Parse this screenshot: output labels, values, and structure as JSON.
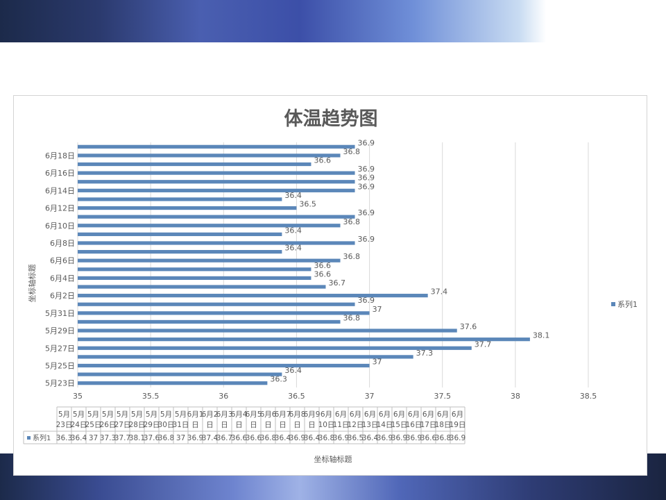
{
  "chart_data": {
    "type": "bar",
    "orientation": "horizontal",
    "title": "体温趋势图",
    "xlabel": "坐标轴标题",
    "ylabel": "坐标轴标题",
    "categories": [
      "5月23日",
      "5月24日",
      "5月25日",
      "5月26日",
      "5月27日",
      "5月28日",
      "5月29日",
      "5月30日",
      "5月31日",
      "6月1日",
      "6月2日",
      "6月3日",
      "6月4日",
      "6月5日",
      "6月6日",
      "6月7日",
      "6月8日",
      "6月9日",
      "6月10日",
      "6月11日",
      "6月12日",
      "6月13日",
      "6月14日",
      "6月15日",
      "6月16日",
      "6月17日",
      "6月18日",
      "6月19日"
    ],
    "table_headers": [
      [
        "5月",
        "23日"
      ],
      [
        "5月",
        "24日"
      ],
      [
        "5月",
        "25日"
      ],
      [
        "5月",
        "26日"
      ],
      [
        "5月",
        "27日"
      ],
      [
        "5月",
        "28日"
      ],
      [
        "5月",
        "29日"
      ],
      [
        "5月",
        "30日"
      ],
      [
        "5月",
        "31日"
      ],
      [
        "6月1",
        "日"
      ],
      [
        "6月2",
        "日"
      ],
      [
        "6月3",
        "日"
      ],
      [
        "6月4",
        "日"
      ],
      [
        "6月5",
        "日"
      ],
      [
        "6月6",
        "日"
      ],
      [
        "6月7",
        "日"
      ],
      [
        "6月8",
        "日"
      ],
      [
        "6月9",
        "日"
      ],
      [
        "6月",
        "10日"
      ],
      [
        "6月",
        "11日"
      ],
      [
        "6月",
        "12日"
      ],
      [
        "6月",
        "13日"
      ],
      [
        "6月",
        "14日"
      ],
      [
        "6月",
        "15日"
      ],
      [
        "6月",
        "16日"
      ],
      [
        "6月",
        "17日"
      ],
      [
        "6月",
        "18日"
      ],
      [
        "6月",
        "19日"
      ]
    ],
    "series": [
      {
        "name": "系列1",
        "color": "#5b87b9",
        "values": [
          36.3,
          36.4,
          37,
          37.3,
          37.7,
          38.1,
          37.6,
          36.8,
          37,
          36.9,
          37.4,
          36.7,
          36.6,
          36.6,
          36.8,
          36.4,
          36.9,
          36.4,
          36.8,
          36.9,
          36.5,
          36.4,
          36.9,
          36.9,
          36.9,
          36.6,
          36.8,
          36.9
        ],
        "labels": [
          "36.3",
          "36.4",
          "37",
          "37.3",
          "37.7",
          "38.1",
          "37.6",
          "36.8",
          "37",
          "36.9",
          "37.4",
          "36.7",
          "36.6",
          "36.6",
          "36.8",
          "36.4",
          "36.9",
          "36.4",
          "36.8",
          "36.9",
          "36.5",
          "36.4",
          "36.9",
          "36.9",
          "36.9",
          "36.6",
          "36.8",
          "36.9"
        ]
      }
    ],
    "xlim": [
      35,
      38.5
    ],
    "xticks": [
      "35",
      "35.5",
      "36",
      "36.5",
      "37",
      "37.5",
      "38",
      "38.5"
    ],
    "ytick_labels": [
      "5月23日",
      "5月25日",
      "5月27日",
      "5月29日",
      "5月31日",
      "6月2日",
      "6月4日",
      "6月6日",
      "6月8日",
      "6月10日",
      "6月12日",
      "6月14日",
      "6月16日",
      "6月18日"
    ],
    "legend": {
      "position": "right",
      "entries": [
        "系列1"
      ]
    },
    "grid": true
  }
}
